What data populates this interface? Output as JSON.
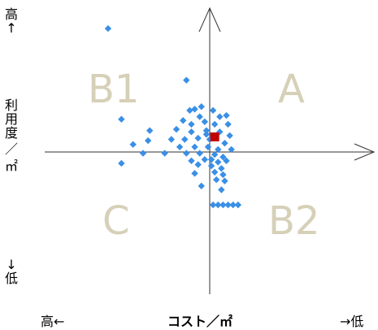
{
  "chart_data": {
    "type": "scatter",
    "title": "",
    "xlabel": "コスト／㎡",
    "x_low_side_label": "高←",
    "x_high_side_label": "→低",
    "ylabel": "利用度／㎡",
    "y_top_label": "高↑",
    "y_bottom_label": "↓低",
    "quadrants": [
      "B1",
      "A",
      "C",
      "B2"
    ],
    "xlim": [
      -1,
      1
    ],
    "ylim": [
      -1,
      1
    ],
    "grid": false,
    "legend": "none",
    "colors": {
      "points": "#3a8fe6",
      "highlight": "#c00000",
      "axes": "#333333",
      "quadrant_label": "#d6d0b8"
    },
    "series": [
      {
        "values": [
          {
            "x": -0.61,
            "y": 0.98
          },
          {
            "x": -0.14,
            "y": 0.57
          },
          {
            "x": -0.53,
            "y": 0.26
          },
          {
            "x": -0.36,
            "y": 0.17
          },
          {
            "x": -0.37,
            "y": 0.09
          },
          {
            "x": -0.46,
            "y": 0.06
          },
          {
            "x": -0.4,
            "y": -0.01
          },
          {
            "x": -0.27,
            "y": -0.01
          },
          {
            "x": -0.53,
            "y": -0.09
          },
          {
            "x": -0.12,
            "y": 0.33
          },
          {
            "x": -0.09,
            "y": 0.34
          },
          {
            "x": -0.05,
            "y": 0.36
          },
          {
            "x": 0.02,
            "y": 0.33
          },
          {
            "x": 0.1,
            "y": 0.29
          },
          {
            "x": -0.06,
            "y": 0.28
          },
          {
            "x": -0.16,
            "y": 0.25
          },
          {
            "x": -0.11,
            "y": 0.22
          },
          {
            "x": -0.03,
            "y": 0.24
          },
          {
            "x": 0.03,
            "y": 0.22
          },
          {
            "x": 0.11,
            "y": 0.22
          },
          {
            "x": -0.2,
            "y": 0.18
          },
          {
            "x": -0.11,
            "y": 0.16
          },
          {
            "x": -0.02,
            "y": 0.17
          },
          {
            "x": 0.06,
            "y": 0.16
          },
          {
            "x": 0.12,
            "y": 0.13
          },
          {
            "x": -0.23,
            "y": 0.1
          },
          {
            "x": -0.15,
            "y": 0.1
          },
          {
            "x": -0.07,
            "y": 0.11
          },
          {
            "x": 0.0,
            "y": 0.1
          },
          {
            "x": 0.09,
            "y": 0.07
          },
          {
            "x": -0.18,
            "y": 0.04
          },
          {
            "x": -0.09,
            "y": 0.04
          },
          {
            "x": -0.01,
            "y": 0.04
          },
          {
            "x": 0.05,
            "y": 0.02
          },
          {
            "x": -0.14,
            "y": -0.01
          },
          {
            "x": -0.06,
            "y": -0.01
          },
          {
            "x": 0.03,
            "y": -0.02
          },
          {
            "x": 0.08,
            "y": -0.04
          },
          {
            "x": -0.11,
            "y": -0.07
          },
          {
            "x": -0.03,
            "y": -0.06
          },
          {
            "x": 0.01,
            "y": -0.06
          },
          {
            "x": 0.05,
            "y": -0.08
          },
          {
            "x": 0.1,
            "y": -0.07
          },
          {
            "x": -0.07,
            "y": -0.1
          },
          {
            "x": 0.01,
            "y": -0.11
          },
          {
            "x": 0.07,
            "y": -0.13
          },
          {
            "x": -0.09,
            "y": -0.17
          },
          {
            "x": 0.03,
            "y": -0.16
          },
          {
            "x": 0.08,
            "y": -0.18
          },
          {
            "x": 0.04,
            "y": -0.22
          },
          {
            "x": 0.09,
            "y": -0.23
          },
          {
            "x": -0.05,
            "y": -0.27
          },
          {
            "x": 0.07,
            "y": -0.3
          },
          {
            "x": 0.02,
            "y": -0.42
          },
          {
            "x": 0.05,
            "y": -0.42
          },
          {
            "x": 0.08,
            "y": -0.42
          },
          {
            "x": 0.11,
            "y": -0.42
          },
          {
            "x": 0.14,
            "y": -0.42
          },
          {
            "x": 0.17,
            "y": -0.42
          },
          {
            "x": -0.02,
            "y": 0.14
          },
          {
            "x": 0.06,
            "y": 0.28
          },
          {
            "x": 0.13,
            "y": 0.02
          }
        ]
      }
    ],
    "highlight_point": {
      "x": 0.03,
      "y": 0.12
    }
  }
}
